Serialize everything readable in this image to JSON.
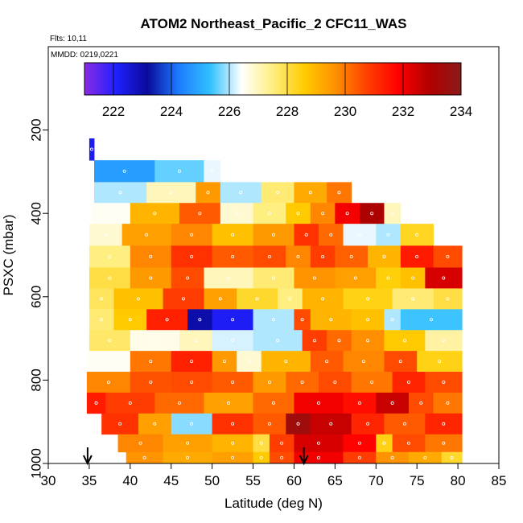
{
  "chart_data": {
    "type": "heatmap",
    "title": "ATOM2 Northeast_Pacific_2 CFC11_WAS",
    "flights_label": "Flts: 10,11",
    "dates_label": "MMDD: 0219,0221",
    "xlabel": "Latitude (deg N)",
    "ylabel": "PSXC (mbar)",
    "xlim": [
      30,
      85
    ],
    "ylim": [
      1000,
      0
    ],
    "x_ticks": [
      30,
      35,
      40,
      45,
      50,
      55,
      60,
      65,
      70,
      75,
      80,
      85
    ],
    "y_ticks": [
      200,
      400,
      600,
      800,
      1000
    ],
    "colorbar": {
      "min": 221,
      "max": 234,
      "ticks": [
        222,
        224,
        226,
        228,
        230,
        232,
        234
      ],
      "stops": [
        "#8a2be2",
        "#2020ff",
        "#0a0a9a",
        "#1e7bff",
        "#30c0ff",
        "#ffffff",
        "#ffee80",
        "#ffcc00",
        "#ff9000",
        "#ff4000",
        "#ff0000",
        "#b00000",
        "#8b1a1a"
      ]
    },
    "bands": [
      {
        "p": 245,
        "segments": [
          {
            "x0": 35.0,
            "x1": 35.6,
            "v": 222.3
          }
        ]
      },
      {
        "p": 300,
        "segments": [
          {
            "x0": 35.6,
            "x1": 43.0,
            "v": 224.8
          },
          {
            "x0": 43.0,
            "x1": 49.0,
            "v": 225.6
          },
          {
            "x0": 49.0,
            "x1": 51.0,
            "v": 226.3
          }
        ]
      },
      {
        "p": 350,
        "segments": [
          {
            "x0": 35.6,
            "x1": 42.0,
            "v": 226.0
          },
          {
            "x0": 42.0,
            "x1": 48.0,
            "v": 227.0
          },
          {
            "x0": 48.0,
            "x1": 51.0,
            "v": 229.5
          },
          {
            "x0": 51.0,
            "x1": 56.0,
            "v": 226.0
          },
          {
            "x0": 56.0,
            "x1": 60.0,
            "v": 227.6
          },
          {
            "x0": 60.0,
            "x1": 64.0,
            "v": 229.2
          },
          {
            "x0": 64.0,
            "x1": 67.0,
            "v": 230.0
          }
        ]
      },
      {
        "p": 400,
        "segments": [
          {
            "x0": 35.3,
            "x1": 40.0,
            "v": 226.5
          },
          {
            "x0": 40.0,
            "x1": 46.0,
            "v": 229.0
          },
          {
            "x0": 46.0,
            "x1": 51.0,
            "v": 230.4
          },
          {
            "x0": 51.0,
            "x1": 55.0,
            "v": 226.8
          },
          {
            "x0": 55.0,
            "x1": 59.0,
            "v": 227.5
          },
          {
            "x0": 59.0,
            "x1": 62.0,
            "v": 228.6
          },
          {
            "x0": 62.0,
            "x1": 65.0,
            "v": 229.8
          },
          {
            "x0": 65.0,
            "x1": 68.0,
            "v": 232.0
          },
          {
            "x0": 68.0,
            "x1": 71.0,
            "v": 233.0
          },
          {
            "x0": 71.0,
            "x1": 73.0,
            "v": 227.0
          }
        ]
      },
      {
        "p": 450,
        "segments": [
          {
            "x0": 35.0,
            "x1": 39.0,
            "v": 226.8
          },
          {
            "x0": 39.0,
            "x1": 45.0,
            "v": 229.4
          },
          {
            "x0": 45.0,
            "x1": 50.0,
            "v": 229.8
          },
          {
            "x0": 50.0,
            "x1": 55.0,
            "v": 228.8
          },
          {
            "x0": 55.0,
            "x1": 60.0,
            "v": 229.5
          },
          {
            "x0": 60.0,
            "x1": 63.0,
            "v": 231.0
          },
          {
            "x0": 63.0,
            "x1": 66.0,
            "v": 230.2
          },
          {
            "x0": 66.0,
            "x1": 70.0,
            "v": 226.3
          },
          {
            "x0": 70.0,
            "x1": 73.0,
            "v": 226.0
          },
          {
            "x0": 73.0,
            "x1": 77.0,
            "v": 228.3
          }
        ]
      },
      {
        "p": 505,
        "segments": [
          {
            "x0": 35.0,
            "x1": 40.0,
            "v": 227.5
          },
          {
            "x0": 40.0,
            "x1": 45.0,
            "v": 229.8
          },
          {
            "x0": 45.0,
            "x1": 50.0,
            "v": 231.0
          },
          {
            "x0": 50.0,
            "x1": 55.0,
            "v": 230.4
          },
          {
            "x0": 55.0,
            "x1": 59.0,
            "v": 230.6
          },
          {
            "x0": 59.0,
            "x1": 62.0,
            "v": 229.8
          },
          {
            "x0": 62.0,
            "x1": 65.0,
            "v": 230.8
          },
          {
            "x0": 65.0,
            "x1": 69.0,
            "v": 230.3
          },
          {
            "x0": 69.0,
            "x1": 73.0,
            "v": 229.0
          },
          {
            "x0": 73.0,
            "x1": 77.0,
            "v": 231.4
          },
          {
            "x0": 77.0,
            "x1": 80.5,
            "v": 230.6
          }
        ]
      },
      {
        "p": 555,
        "segments": [
          {
            "x0": 35.0,
            "x1": 40.0,
            "v": 228.0
          },
          {
            "x0": 40.0,
            "x1": 45.0,
            "v": 229.5
          },
          {
            "x0": 45.0,
            "x1": 49.0,
            "v": 230.6
          },
          {
            "x0": 49.0,
            "x1": 55.0,
            "v": 227.0
          },
          {
            "x0": 55.0,
            "x1": 60.0,
            "v": 227.6
          },
          {
            "x0": 60.0,
            "x1": 65.0,
            "v": 229.6
          },
          {
            "x0": 65.0,
            "x1": 70.0,
            "v": 229.4
          },
          {
            "x0": 70.0,
            "x1": 73.0,
            "v": 228.5
          },
          {
            "x0": 73.0,
            "x1": 76.0,
            "v": 228.8
          },
          {
            "x0": 76.0,
            "x1": 80.5,
            "v": 232.4
          }
        ]
      },
      {
        "p": 605,
        "segments": [
          {
            "x0": 35.0,
            "x1": 38.0,
            "v": 227.8
          },
          {
            "x0": 38.0,
            "x1": 44.0,
            "v": 228.8
          },
          {
            "x0": 44.0,
            "x1": 49.0,
            "v": 230.8
          },
          {
            "x0": 49.0,
            "x1": 53.0,
            "v": 229.4
          },
          {
            "x0": 53.0,
            "x1": 58.0,
            "v": 228.2
          },
          {
            "x0": 58.0,
            "x1": 61.0,
            "v": 227.5
          },
          {
            "x0": 61.0,
            "x1": 66.0,
            "v": 229.0
          },
          {
            "x0": 66.0,
            "x1": 72.0,
            "v": 228.4
          },
          {
            "x0": 72.0,
            "x1": 77.0,
            "v": 227.6
          },
          {
            "x0": 77.0,
            "x1": 80.5,
            "v": 228.0
          }
        ]
      },
      {
        "p": 655,
        "segments": [
          {
            "x0": 35.0,
            "x1": 38.0,
            "v": 227.6
          },
          {
            "x0": 38.0,
            "x1": 42.0,
            "v": 228.6
          },
          {
            "x0": 42.0,
            "x1": 47.0,
            "v": 231.3
          },
          {
            "x0": 47.0,
            "x1": 50.0,
            "v": 223.0
          },
          {
            "x0": 50.0,
            "x1": 55.0,
            "v": 222.2
          },
          {
            "x0": 55.0,
            "x1": 60.0,
            "v": 226.0
          },
          {
            "x0": 60.0,
            "x1": 62.0,
            "v": 230.6
          },
          {
            "x0": 62.0,
            "x1": 67.0,
            "v": 229.0
          },
          {
            "x0": 67.0,
            "x1": 71.0,
            "v": 228.8
          },
          {
            "x0": 71.0,
            "x1": 73.0,
            "v": 226.0
          },
          {
            "x0": 73.0,
            "x1": 80.5,
            "v": 225.4
          }
        ]
      },
      {
        "p": 705,
        "segments": [
          {
            "x0": 35.0,
            "x1": 40.0,
            "v": 227.7
          },
          {
            "x0": 40.0,
            "x1": 46.0,
            "v": 226.6
          },
          {
            "x0": 46.0,
            "x1": 50.0,
            "v": 227.0
          },
          {
            "x0": 50.0,
            "x1": 55.0,
            "v": 226.2
          },
          {
            "x0": 55.0,
            "x1": 61.0,
            "v": 226.0
          },
          {
            "x0": 61.0,
            "x1": 64.0,
            "v": 230.8
          },
          {
            "x0": 64.0,
            "x1": 67.0,
            "v": 230.2
          },
          {
            "x0": 67.0,
            "x1": 71.0,
            "v": 229.7
          },
          {
            "x0": 71.0,
            "x1": 76.0,
            "v": 228.6
          },
          {
            "x0": 76.0,
            "x1": 80.5,
            "v": 227.2
          }
        ]
      },
      {
        "p": 755,
        "segments": [
          {
            "x0": 34.7,
            "x1": 40.0,
            "v": 226.5
          },
          {
            "x0": 40.0,
            "x1": 45.0,
            "v": 230.0
          },
          {
            "x0": 45.0,
            "x1": 50.0,
            "v": 231.3
          },
          {
            "x0": 50.0,
            "x1": 53.0,
            "v": 229.5
          },
          {
            "x0": 53.0,
            "x1": 56.0,
            "v": 226.8
          },
          {
            "x0": 56.0,
            "x1": 62.0,
            "v": 229.0
          },
          {
            "x0": 62.0,
            "x1": 66.0,
            "v": 230.4
          },
          {
            "x0": 66.0,
            "x1": 71.0,
            "v": 229.8
          },
          {
            "x0": 71.0,
            "x1": 75.0,
            "v": 230.6
          },
          {
            "x0": 75.0,
            "x1": 80.5,
            "v": 228.4
          }
        ]
      },
      {
        "p": 805,
        "segments": [
          {
            "x0": 34.7,
            "x1": 40.0,
            "v": 229.8
          },
          {
            "x0": 40.0,
            "x1": 45.0,
            "v": 230.5
          },
          {
            "x0": 45.0,
            "x1": 50.0,
            "v": 230.6
          },
          {
            "x0": 50.0,
            "x1": 55.0,
            "v": 230.4
          },
          {
            "x0": 55.0,
            "x1": 59.0,
            "v": 229.5
          },
          {
            "x0": 59.0,
            "x1": 63.0,
            "v": 230.2
          },
          {
            "x0": 63.0,
            "x1": 67.0,
            "v": 230.6
          },
          {
            "x0": 67.0,
            "x1": 72.0,
            "v": 230.0
          },
          {
            "x0": 72.0,
            "x1": 76.0,
            "v": 231.2
          },
          {
            "x0": 76.0,
            "x1": 80.5,
            "v": 230.6
          }
        ]
      },
      {
        "p": 855,
        "segments": [
          {
            "x0": 34.7,
            "x1": 37.0,
            "v": 231.4
          },
          {
            "x0": 37.0,
            "x1": 43.0,
            "v": 230.8
          },
          {
            "x0": 43.0,
            "x1": 49.0,
            "v": 230.2
          },
          {
            "x0": 49.0,
            "x1": 55.0,
            "v": 229.4
          },
          {
            "x0": 55.0,
            "x1": 60.0,
            "v": 230.2
          },
          {
            "x0": 60.0,
            "x1": 66.0,
            "v": 232.0
          },
          {
            "x0": 66.0,
            "x1": 70.0,
            "v": 231.6
          },
          {
            "x0": 70.0,
            "x1": 74.0,
            "v": 232.6
          },
          {
            "x0": 74.0,
            "x1": 77.0,
            "v": 230.6
          },
          {
            "x0": 77.0,
            "x1": 80.5,
            "v": 230.0
          }
        ]
      },
      {
        "p": 905,
        "segments": [
          {
            "x0": 36.5,
            "x1": 41.0,
            "v": 231.0
          },
          {
            "x0": 41.0,
            "x1": 45.0,
            "v": 229.4
          },
          {
            "x0": 45.0,
            "x1": 50.0,
            "v": 225.8
          },
          {
            "x0": 50.0,
            "x1": 55.0,
            "v": 231.0
          },
          {
            "x0": 55.0,
            "x1": 59.0,
            "v": 230.4
          },
          {
            "x0": 59.0,
            "x1": 62.0,
            "v": 233.4
          },
          {
            "x0": 62.0,
            "x1": 67.0,
            "v": 232.6
          },
          {
            "x0": 67.0,
            "x1": 71.0,
            "v": 231.2
          },
          {
            "x0": 71.0,
            "x1": 76.0,
            "v": 230.4
          },
          {
            "x0": 76.0,
            "x1": 80.5,
            "v": 231.2
          }
        ]
      },
      {
        "p": 955,
        "segments": [
          {
            "x0": 38.5,
            "x1": 44.0,
            "v": 229.8
          },
          {
            "x0": 44.0,
            "x1": 50.0,
            "v": 229.4
          },
          {
            "x0": 50.0,
            "x1": 55.0,
            "v": 229.0
          },
          {
            "x0": 55.0,
            "x1": 57.0,
            "v": 228.0
          },
          {
            "x0": 57.0,
            "x1": 60.0,
            "v": 230.8
          },
          {
            "x0": 60.0,
            "x1": 66.0,
            "v": 232.4
          },
          {
            "x0": 66.0,
            "x1": 70.0,
            "v": 231.8
          },
          {
            "x0": 70.0,
            "x1": 72.0,
            "v": 228.4
          },
          {
            "x0": 72.0,
            "x1": 76.0,
            "v": 230.6
          },
          {
            "x0": 76.0,
            "x1": 80.5,
            "v": 230.0
          }
        ]
      },
      {
        "p": 990,
        "segments": [
          {
            "x0": 39.5,
            "x1": 44.0,
            "v": 229.6
          },
          {
            "x0": 44.0,
            "x1": 50.0,
            "v": 229.2
          },
          {
            "x0": 50.0,
            "x1": 55.0,
            "v": 229.4
          },
          {
            "x0": 55.0,
            "x1": 57.0,
            "v": 228.6
          },
          {
            "x0": 57.0,
            "x1": 60.0,
            "v": 230.6
          },
          {
            "x0": 60.0,
            "x1": 66.0,
            "v": 232.0
          },
          {
            "x0": 66.0,
            "x1": 70.0,
            "v": 230.8
          },
          {
            "x0": 70.0,
            "x1": 74.0,
            "v": 229.6
          },
          {
            "x0": 74.0,
            "x1": 78.0,
            "v": 229.2
          },
          {
            "x0": 78.0,
            "x1": 80.5,
            "v": 228.2
          }
        ]
      }
    ],
    "markers": [
      {
        "x": 34.8,
        "label": "takeoff arrow"
      },
      {
        "x": 61.2,
        "label": "landing arrow"
      }
    ]
  }
}
